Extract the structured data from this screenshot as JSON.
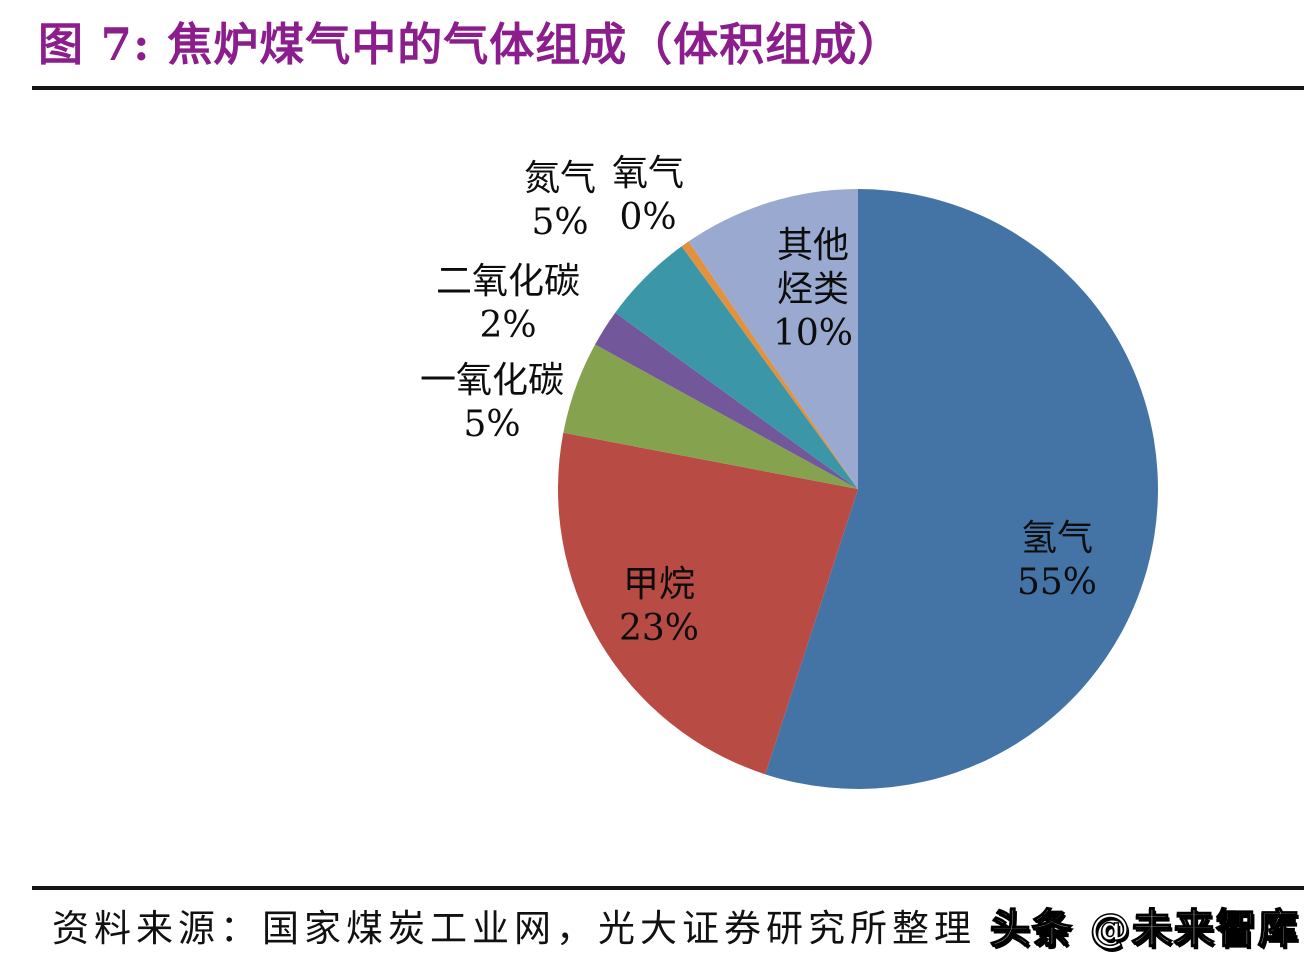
{
  "page": {
    "title": "图 7:  焦炉煤气中的气体组成（体积组成）"
  },
  "chart_data": {
    "type": "pie",
    "title": "焦炉煤气中的气体组成（体积组成）",
    "start_angle_deg": 0,
    "direction": "clockwise",
    "legend_position": "none",
    "labels_on_chart": true,
    "segments": [
      {
        "id": "hydrogen",
        "label": "氢气",
        "pct_label": "55%",
        "value": 55,
        "color": "#4473A6",
        "label_position": "inside"
      },
      {
        "id": "methane",
        "label": "甲烷",
        "pct_label": "23%",
        "value": 23,
        "color": "#B94B45",
        "label_position": "inside"
      },
      {
        "id": "carbon-monoxide",
        "label": "一氧化碳",
        "pct_label": "5%",
        "value": 5,
        "color": "#85A24E",
        "label_position": "outside"
      },
      {
        "id": "carbon-dioxide",
        "label": "二氧化碳",
        "pct_label": "2%",
        "value": 2,
        "color": "#72589A",
        "label_position": "outside"
      },
      {
        "id": "nitrogen",
        "label": "氮气",
        "pct_label": "5%",
        "value": 5,
        "color": "#3B97A8",
        "label_position": "outside"
      },
      {
        "id": "oxygen",
        "label": "氧气",
        "pct_label": "0%",
        "value": 0,
        "color": "#E2913F",
        "label_position": "outside",
        "visual_value": 0.45
      },
      {
        "id": "other-hydrocarbons",
        "label": "其他烃类",
        "pct_label": "10%",
        "value": 10,
        "color": "#9AA9D0",
        "label_position": "inside",
        "visual_value": 9.55
      }
    ]
  },
  "footer": {
    "source": "资料来源：国家煤炭工业网，光大证券研究所整理",
    "watermark": "头条 @未来智库"
  }
}
